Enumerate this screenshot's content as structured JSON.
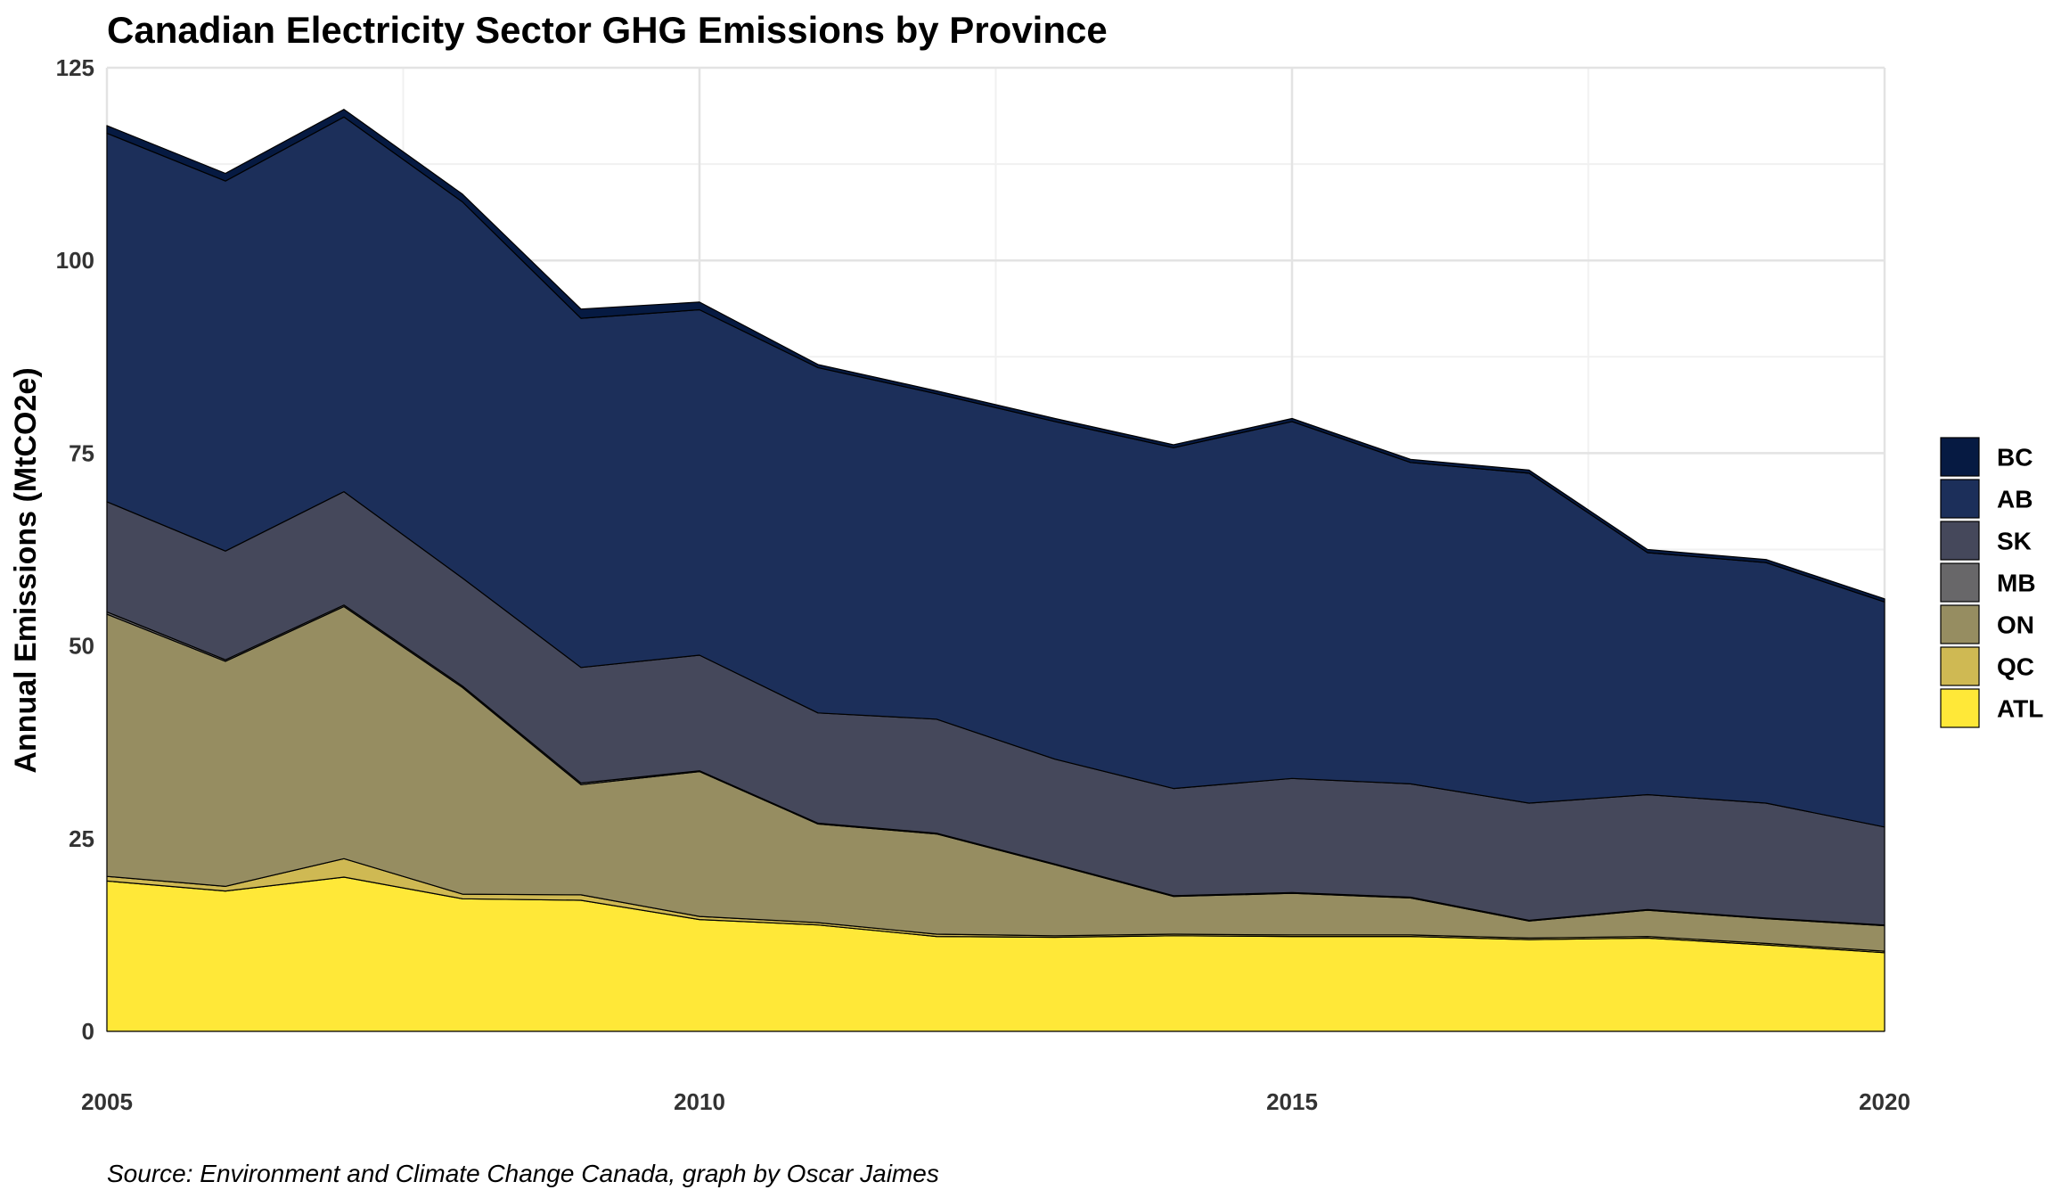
{
  "chart_data": {
    "type": "area",
    "stacked": true,
    "title": "Canadian Electricity Sector GHG Emissions by Province",
    "caption": "Source: Environment and Climate Change Canada, graph by Oscar Jaimes",
    "xlabel": "",
    "ylabel": "Annual Emissions (MtCO2e)",
    "xlim": [
      2005,
      2020
    ],
    "ylim": [
      0,
      125
    ],
    "x_ticks": [
      "2005",
      "2010",
      "2015",
      "2020"
    ],
    "y_ticks": [
      "0",
      "25",
      "50",
      "75",
      "100",
      "125"
    ],
    "grid": true,
    "legend_position": "right",
    "x": [
      2005,
      2006,
      2007,
      2008,
      2009,
      2010,
      2011,
      2012,
      2013,
      2014,
      2015,
      2016,
      2017,
      2018,
      2019,
      2020
    ],
    "series": [
      {
        "name": "ATL",
        "color": "#FFE838",
        "values": [
          19.5,
          18.2,
          20.0,
          17.2,
          17.0,
          14.5,
          13.8,
          12.3,
          12.2,
          12.4,
          12.3,
          12.3,
          11.9,
          12.1,
          11.2,
          10.2
        ]
      },
      {
        "name": "QC",
        "color": "#CFB953",
        "values": [
          0.6,
          0.6,
          2.4,
          0.6,
          0.7,
          0.4,
          0.3,
          0.3,
          0.2,
          0.2,
          0.2,
          0.2,
          0.2,
          0.2,
          0.2,
          0.2
        ]
      },
      {
        "name": "ON",
        "color": "#968D61",
        "values": [
          34.0,
          29.2,
          32.7,
          26.8,
          14.3,
          18.8,
          12.8,
          13.0,
          9.2,
          4.9,
          5.4,
          4.8,
          2.2,
          3.4,
          3.2,
          3.3
        ]
      },
      {
        "name": "MB",
        "color": "#686769",
        "values": [
          0.3,
          0.2,
          0.2,
          0.2,
          0.2,
          0.1,
          0.1,
          0.1,
          0.1,
          0.1,
          0.1,
          0.1,
          0.1,
          0.1,
          0.1,
          0.1
        ]
      },
      {
        "name": "SK",
        "color": "#45485B",
        "values": [
          14.3,
          14.1,
          14.7,
          14.0,
          15.0,
          15.0,
          14.3,
          14.8,
          13.6,
          13.9,
          14.8,
          14.7,
          15.2,
          14.9,
          14.9,
          12.7
        ]
      },
      {
        "name": "AB",
        "color": "#1C2F5A",
        "values": [
          47.8,
          48.0,
          48.6,
          48.8,
          45.3,
          44.8,
          44.8,
          42.2,
          43.8,
          44.2,
          46.3,
          41.7,
          42.8,
          31.4,
          31.2,
          29.2
        ]
      },
      {
        "name": "BC",
        "color": "#061A42",
        "values": [
          1.0,
          1.0,
          1.0,
          1.0,
          1.2,
          1.0,
          0.4,
          0.4,
          0.4,
          0.4,
          0.4,
          0.4,
          0.4,
          0.4,
          0.4,
          0.4
        ]
      }
    ],
    "legend_order": [
      "BC",
      "AB",
      "SK",
      "MB",
      "ON",
      "QC",
      "ATL"
    ],
    "colors": {
      "grid_major": "#E3E3E3",
      "grid_minor": "#F1F1F1",
      "outline": "#000000"
    }
  }
}
